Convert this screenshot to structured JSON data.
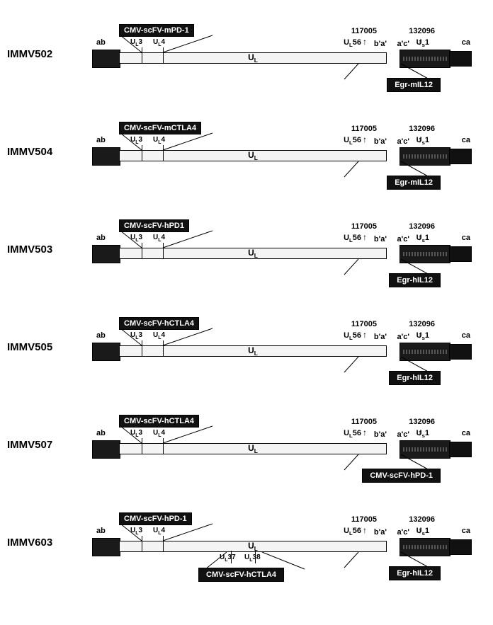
{
  "genome_labels": {
    "ab": "ab",
    "ul": "U",
    "ul_sub": "L",
    "ul3": "U",
    "ul3_sub": "L",
    "ul3_suffix": "3",
    "ul4": "U",
    "ul4_sub": "L",
    "ul4_suffix": "4",
    "ul56": "U",
    "ul56_sub": "L",
    "ul56_suffix": "56",
    "bprime": "b'a'",
    "acprime": "a'c'",
    "us1": "U",
    "us1_sub": "s",
    "us1_suffix": "1",
    "ca": "ca",
    "num_left": "117005",
    "num_right": "132096",
    "arrow": "↑"
  },
  "constructs": [
    {
      "name": "IMMV502",
      "top_cassette": "CMV-scFV-mPD-1",
      "bottom_cassette": "Egr-mIL12"
    },
    {
      "name": "IMMV504",
      "top_cassette": "CMV-scFV-mCTLA4",
      "bottom_cassette": "Egr-mIL12"
    },
    {
      "name": "IMMV503",
      "top_cassette": "CMV-scFV-hPD1",
      "bottom_cassette": "Egr-hIL12"
    },
    {
      "name": "IMMV505",
      "top_cassette": "CMV-scFV-hCTLA4",
      "bottom_cassette": "Egr-hIL12"
    },
    {
      "name": "IMMV507",
      "top_cassette": "CMV-scFV-hCTLA4",
      "bottom_cassette": "CMV-scFV-hPD-1"
    },
    {
      "name": "IMMV603",
      "top_cassette": "CMV-scFV-hPD-1",
      "bottom_cassette": "Egr-hIL12",
      "second_bottom_cassette": "CMV-scFV-hCTLA4",
      "ul37": "U",
      "ul37_sub": "L",
      "ul37_suffix": "37",
      "ul38": "U",
      "ul38_sub": "L",
      "ul38_suffix": "38"
    }
  ],
  "colors": {
    "black": "#111111",
    "bar_fill": "#f4f4f4",
    "bg": "#ffffff"
  }
}
